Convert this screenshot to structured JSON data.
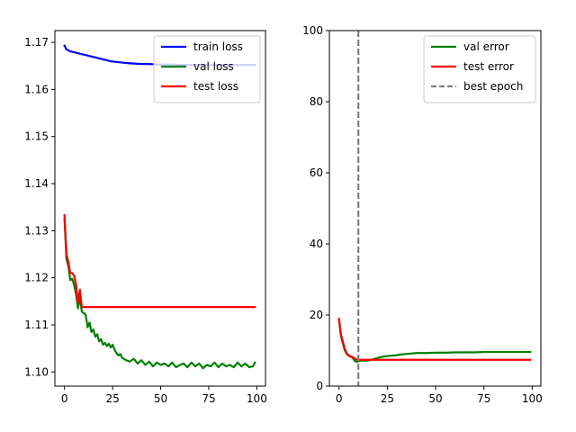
{
  "chart_data": [
    {
      "type": "line",
      "xlim": [
        -5,
        104.5
      ],
      "ylim": [
        1.097,
        1.1725
      ],
      "xticks": [
        0,
        25,
        50,
        75,
        100
      ],
      "xtick_labels": [
        "0",
        "25",
        "50",
        "75",
        "100"
      ],
      "yticks": [
        1.1,
        1.11,
        1.12,
        1.13,
        1.14,
        1.15,
        1.16,
        1.17
      ],
      "ytick_labels": [
        "1.10",
        "1.11",
        "1.12",
        "1.13",
        "1.14",
        "1.15",
        "1.16",
        "1.17"
      ],
      "legend_position": "top-right",
      "series": [
        {
          "name": "train loss",
          "color": "#0000ff",
          "x": [
            0,
            1,
            2,
            3,
            4,
            5,
            6,
            7,
            8,
            9,
            10,
            12,
            14,
            16,
            18,
            20,
            22,
            24,
            26,
            28,
            30,
            33,
            36,
            40,
            44,
            48,
            52,
            56,
            60,
            65,
            70,
            75,
            80,
            85,
            90,
            95,
            99
          ],
          "y": [
            1.1693,
            1.1685,
            1.1683,
            1.1681,
            1.168,
            1.1679,
            1.1678,
            1.1677,
            1.1676,
            1.1675,
            1.1674,
            1.1672,
            1.167,
            1.1668,
            1.1666,
            1.1664,
            1.1662,
            1.166,
            1.1659,
            1.1658,
            1.1657,
            1.1656,
            1.1655,
            1.1654,
            1.1654,
            1.1653,
            1.1653,
            1.1653,
            1.1652,
            1.1652,
            1.1652,
            1.1652,
            1.1652,
            1.1652,
            1.1652,
            1.1652,
            1.1652
          ]
        },
        {
          "name": "val loss",
          "color": "#008000",
          "x": [
            0,
            1,
            2,
            3,
            4,
            5,
            6,
            7,
            8,
            9,
            10,
            11,
            12,
            13,
            14,
            15,
            16,
            17,
            18,
            19,
            20,
            21,
            22,
            23,
            24,
            25,
            26,
            27,
            28,
            29,
            30,
            32,
            34,
            36,
            38,
            40,
            42,
            44,
            46,
            48,
            50,
            52,
            54,
            56,
            58,
            60,
            62,
            64,
            66,
            68,
            70,
            72,
            74,
            76,
            78,
            80,
            82,
            84,
            86,
            88,
            90,
            92,
            94,
            96,
            98,
            99
          ],
          "y": [
            1.1325,
            1.124,
            1.1225,
            1.1195,
            1.1198,
            1.1185,
            1.1165,
            1.1135,
            1.1158,
            1.1128,
            1.1125,
            1.1122,
            1.1095,
            1.1105,
            1.1085,
            1.109,
            1.1075,
            1.108,
            1.1065,
            1.107,
            1.1058,
            1.1062,
            1.1055,
            1.106,
            1.1052,
            1.1058,
            1.1048,
            1.104,
            1.1035,
            1.1038,
            1.103,
            1.1025,
            1.1022,
            1.1028,
            1.1018,
            1.1025,
            1.1015,
            1.1022,
            1.1012,
            1.102,
            1.1015,
            1.1018,
            1.1012,
            1.102,
            1.101,
            1.1015,
            1.1018,
            1.101,
            1.102,
            1.1012,
            1.1018,
            1.1008,
            1.1015,
            1.1012,
            1.102,
            1.101,
            1.1018,
            1.1012,
            1.1015,
            1.101,
            1.102,
            1.1012,
            1.1018,
            1.101,
            1.1012,
            1.102
          ]
        },
        {
          "name": "test loss",
          "color": "#ff0000",
          "x": [
            0,
            1,
            2,
            3,
            4,
            5,
            6,
            7,
            8,
            9,
            99
          ],
          "y": [
            1.1333,
            1.125,
            1.1235,
            1.121,
            1.121,
            1.1205,
            1.1185,
            1.1148,
            1.1175,
            1.1138,
            1.1138
          ]
        }
      ]
    },
    {
      "type": "line",
      "xlim": [
        -5,
        104.5
      ],
      "ylim": [
        0,
        100
      ],
      "xticks": [
        0,
        25,
        50,
        75,
        100
      ],
      "xtick_labels": [
        "0",
        "25",
        "50",
        "75",
        "100"
      ],
      "yticks": [
        0,
        20,
        40,
        60,
        80,
        100
      ],
      "ytick_labels": [
        "0",
        "20",
        "40",
        "60",
        "80",
        "100"
      ],
      "legend_position": "top-right",
      "series": [
        {
          "name": "val error",
          "color": "#008000",
          "x": [
            0,
            1,
            2,
            3,
            4,
            5,
            6,
            7,
            8,
            9,
            10,
            12,
            14,
            16,
            18,
            20,
            22,
            24,
            26,
            28,
            30,
            32,
            34,
            36,
            38,
            40,
            45,
            50,
            55,
            60,
            65,
            70,
            75,
            80,
            85,
            90,
            95,
            99
          ],
          "y": [
            18.5,
            14.0,
            12.0,
            10.0,
            9.0,
            8.5,
            8.3,
            8.0,
            7.2,
            6.8,
            7.0,
            7.2,
            7.1,
            7.3,
            7.6,
            7.9,
            8.2,
            8.4,
            8.5,
            8.6,
            8.7,
            8.9,
            9.0,
            9.1,
            9.2,
            9.3,
            9.3,
            9.4,
            9.4,
            9.5,
            9.5,
            9.5,
            9.6,
            9.6,
            9.6,
            9.6,
            9.6,
            9.6
          ]
        },
        {
          "name": "test error",
          "color": "#ff0000",
          "x": [
            0,
            1,
            2,
            3,
            4,
            5,
            6,
            7,
            8,
            9,
            10,
            99
          ],
          "y": [
            19.0,
            14.5,
            12.5,
            10.5,
            9.2,
            8.6,
            8.4,
            8.2,
            7.8,
            7.5,
            7.4,
            7.4
          ]
        },
        {
          "name": "best epoch",
          "color": "#808080",
          "dashed": true,
          "vline_x": 10
        }
      ]
    }
  ]
}
